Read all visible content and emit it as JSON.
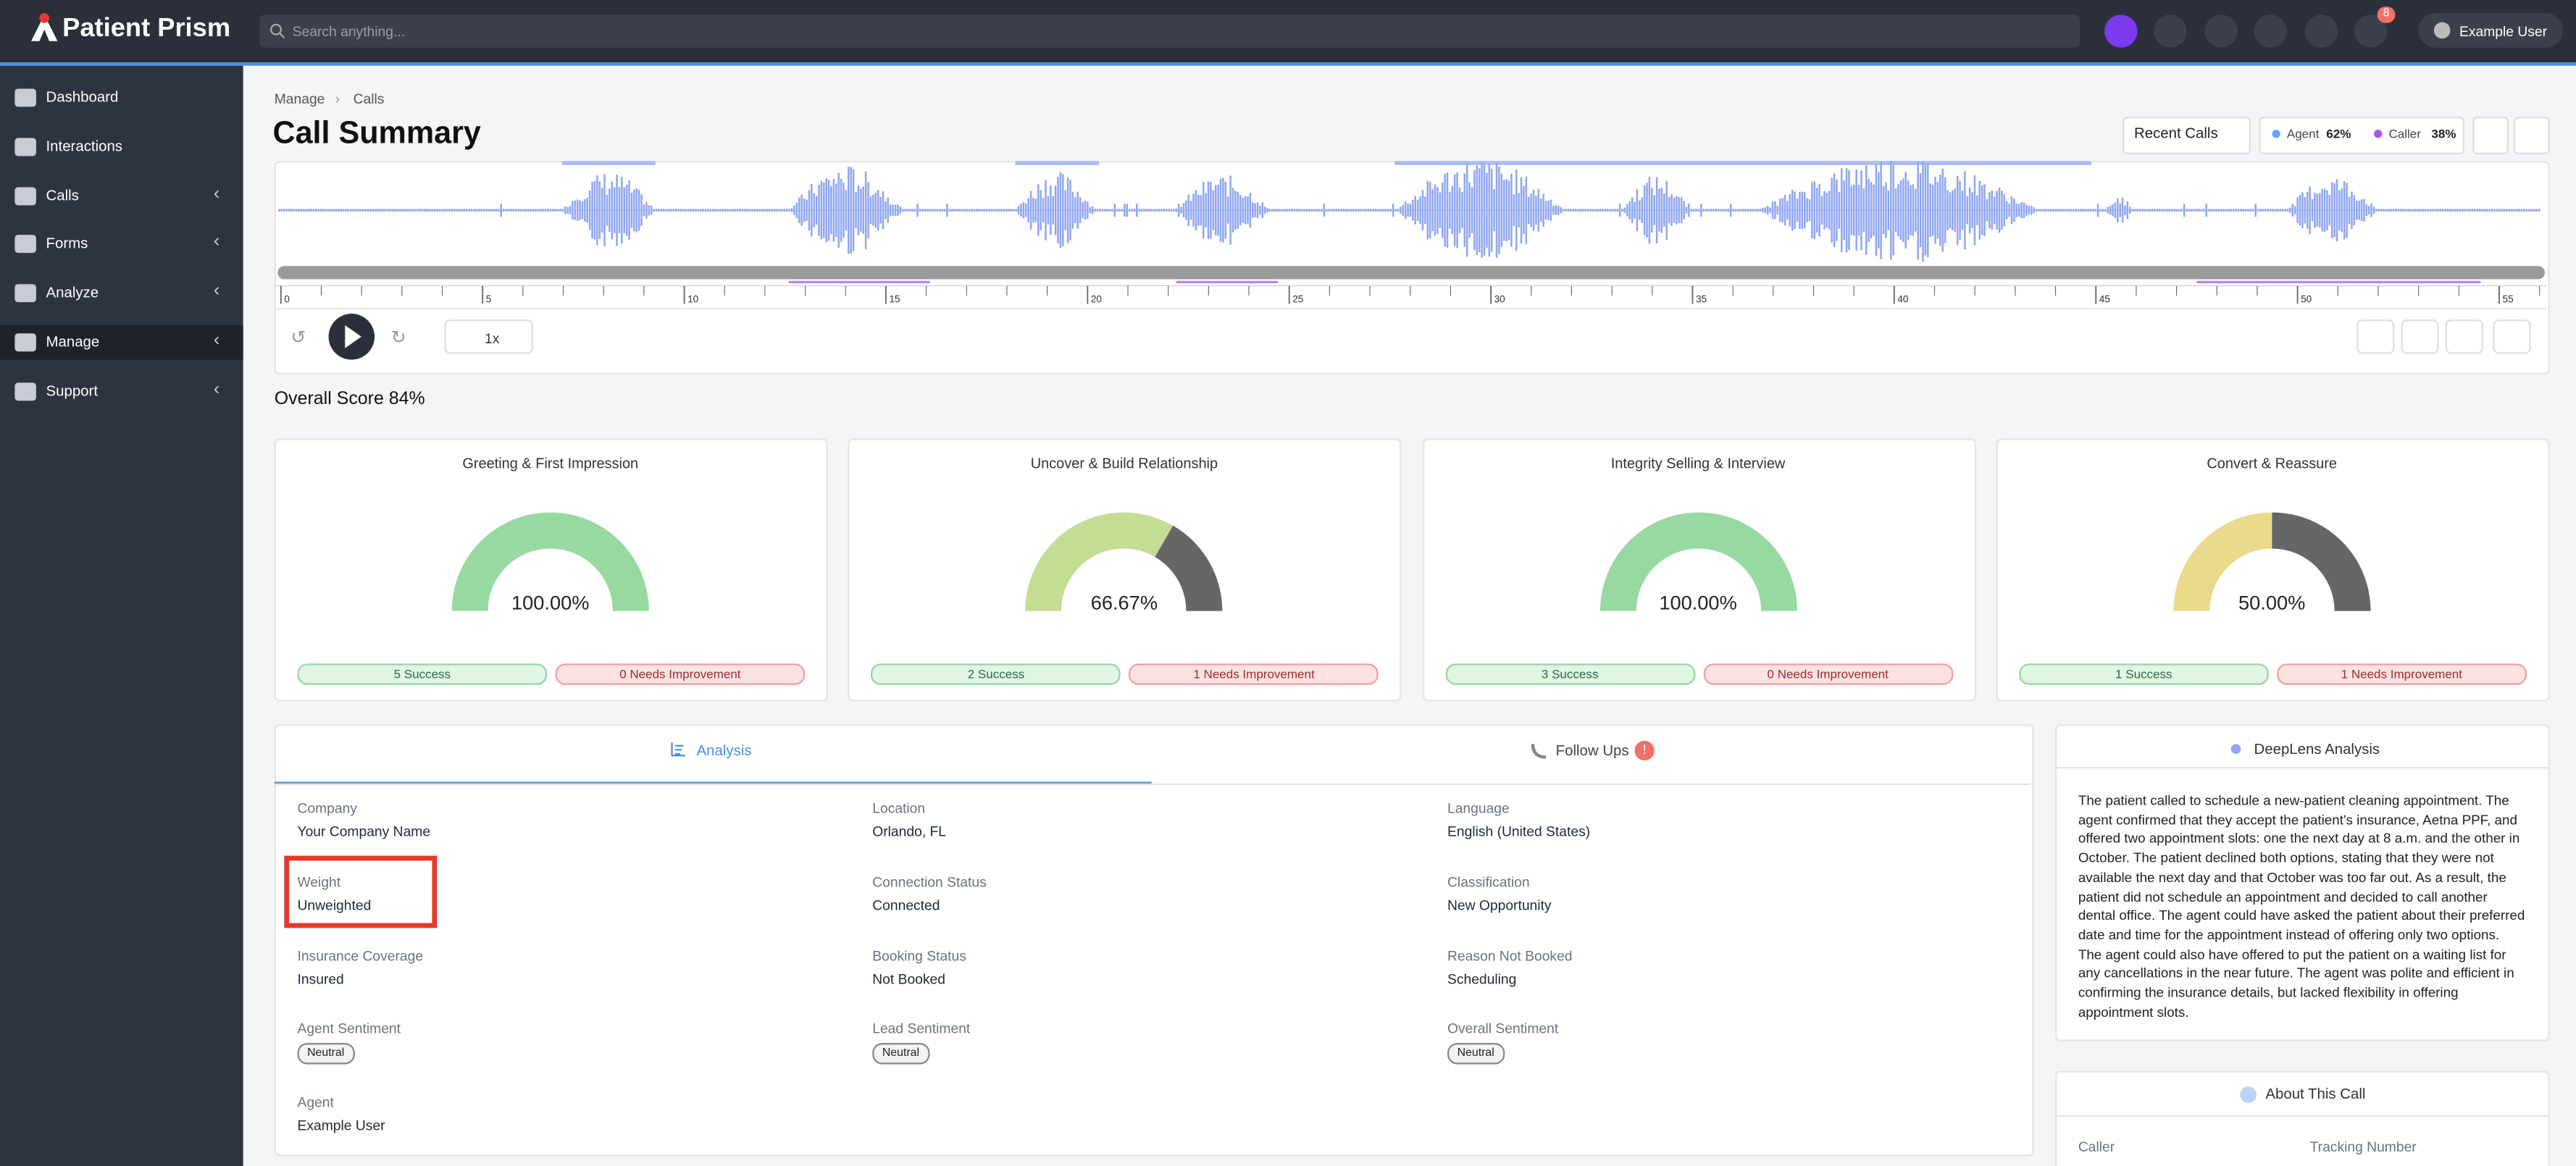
{
  "brand": "Patient Prism",
  "search_placeholder": "Search anything...",
  "notifications": "8",
  "user": "Example User",
  "nav": [
    "Dashboard",
    "Interactions",
    "Calls",
    "Forms",
    "Analyze",
    "Manage",
    "Support"
  ],
  "breadcrumb": [
    "Manage",
    "Calls"
  ],
  "title": "Call Summary",
  "recent_calls": "Recent Calls",
  "talk_split": [
    {
      "name": "Agent",
      "percent": "62%"
    },
    {
      "name": "Caller",
      "percent": "38%"
    }
  ],
  "timeline_ticks": [
    "0",
    "5",
    "10",
    "15",
    "20",
    "25",
    "30",
    "35",
    "40",
    "45",
    "50",
    "55"
  ],
  "speed": "1x",
  "overall_score": "Overall Score 84%",
  "score_cards": [
    {
      "title": "Greeting & First Impression",
      "score": {
        "value": 100,
        "label": "100.00%"
      },
      "color": "#98d9a2",
      "success": "5 Success",
      "needs": "0 Needs Improvement"
    },
    {
      "title": "Uncover & Build Relationship",
      "score": {
        "value": 66.67,
        "label": "66.67%"
      },
      "color": "#c3dd95",
      "success": "2 Success",
      "needs": "1 Needs Improvement"
    },
    {
      "title": "Integrity Selling & Interview",
      "score": {
        "value": 100,
        "label": "100.00%"
      },
      "color": "#98d9a2",
      "success": "3 Success",
      "needs": "0 Needs Improvement"
    },
    {
      "title": "Convert & Reassure",
      "score": {
        "value": 50,
        "label": "50.00%"
      },
      "color": "#e9da8c",
      "success": "1 Success",
      "needs": "1 Needs Improvement"
    }
  ],
  "tabs": [
    "Analysis",
    "Follow Ups"
  ],
  "fields": [
    {
      "label": "Company",
      "value": "Your Company Name"
    },
    {
      "label": "Location",
      "value": "Orlando, FL"
    },
    {
      "label": "Language",
      "value": "English (United States)"
    },
    {
      "label": "Weight",
      "value": "Unweighted"
    },
    {
      "label": "Connection Status",
      "value": "Connected"
    },
    {
      "label": "Classification",
      "value": "New Opportunity"
    },
    {
      "label": "Insurance Coverage",
      "value": "Insured"
    },
    {
      "label": "Booking Status",
      "value": "Not Booked"
    },
    {
      "label": "Reason Not Booked",
      "value": "Scheduling"
    },
    {
      "label": "Agent Sentiment",
      "value": "Neutral"
    },
    {
      "label": "Lead Sentiment",
      "value": "Neutral"
    },
    {
      "label": "Overall Sentiment",
      "value": "Neutral"
    },
    {
      "label": "Agent",
      "value": "Example User"
    }
  ],
  "deeplens": {
    "title": "DeepLens Analysis",
    "text": "The patient called to schedule a new-patient cleaning appointment. The agent confirmed that they accept the patient's insurance, Aetna PPF, and offered two appointment slots: one the next day at 8 a.m. and the other in October. The patient declined both options, stating that they were not available the next day and that October was too far out. As a result, the patient did not schedule an appointment and decided to call another dental office. The agent could have asked the patient about their preferred date and time for the appointment instead of offering only two options. The agent could also have offered to put the patient on a waiting list for any cancellations in the near future. The agent was polite and efficient in confirming the insurance details, but lacked flexibility in offering appointment slots."
  },
  "about": {
    "title": "About This Call",
    "fields": [
      "Caller",
      "Tracking Number"
    ]
  }
}
